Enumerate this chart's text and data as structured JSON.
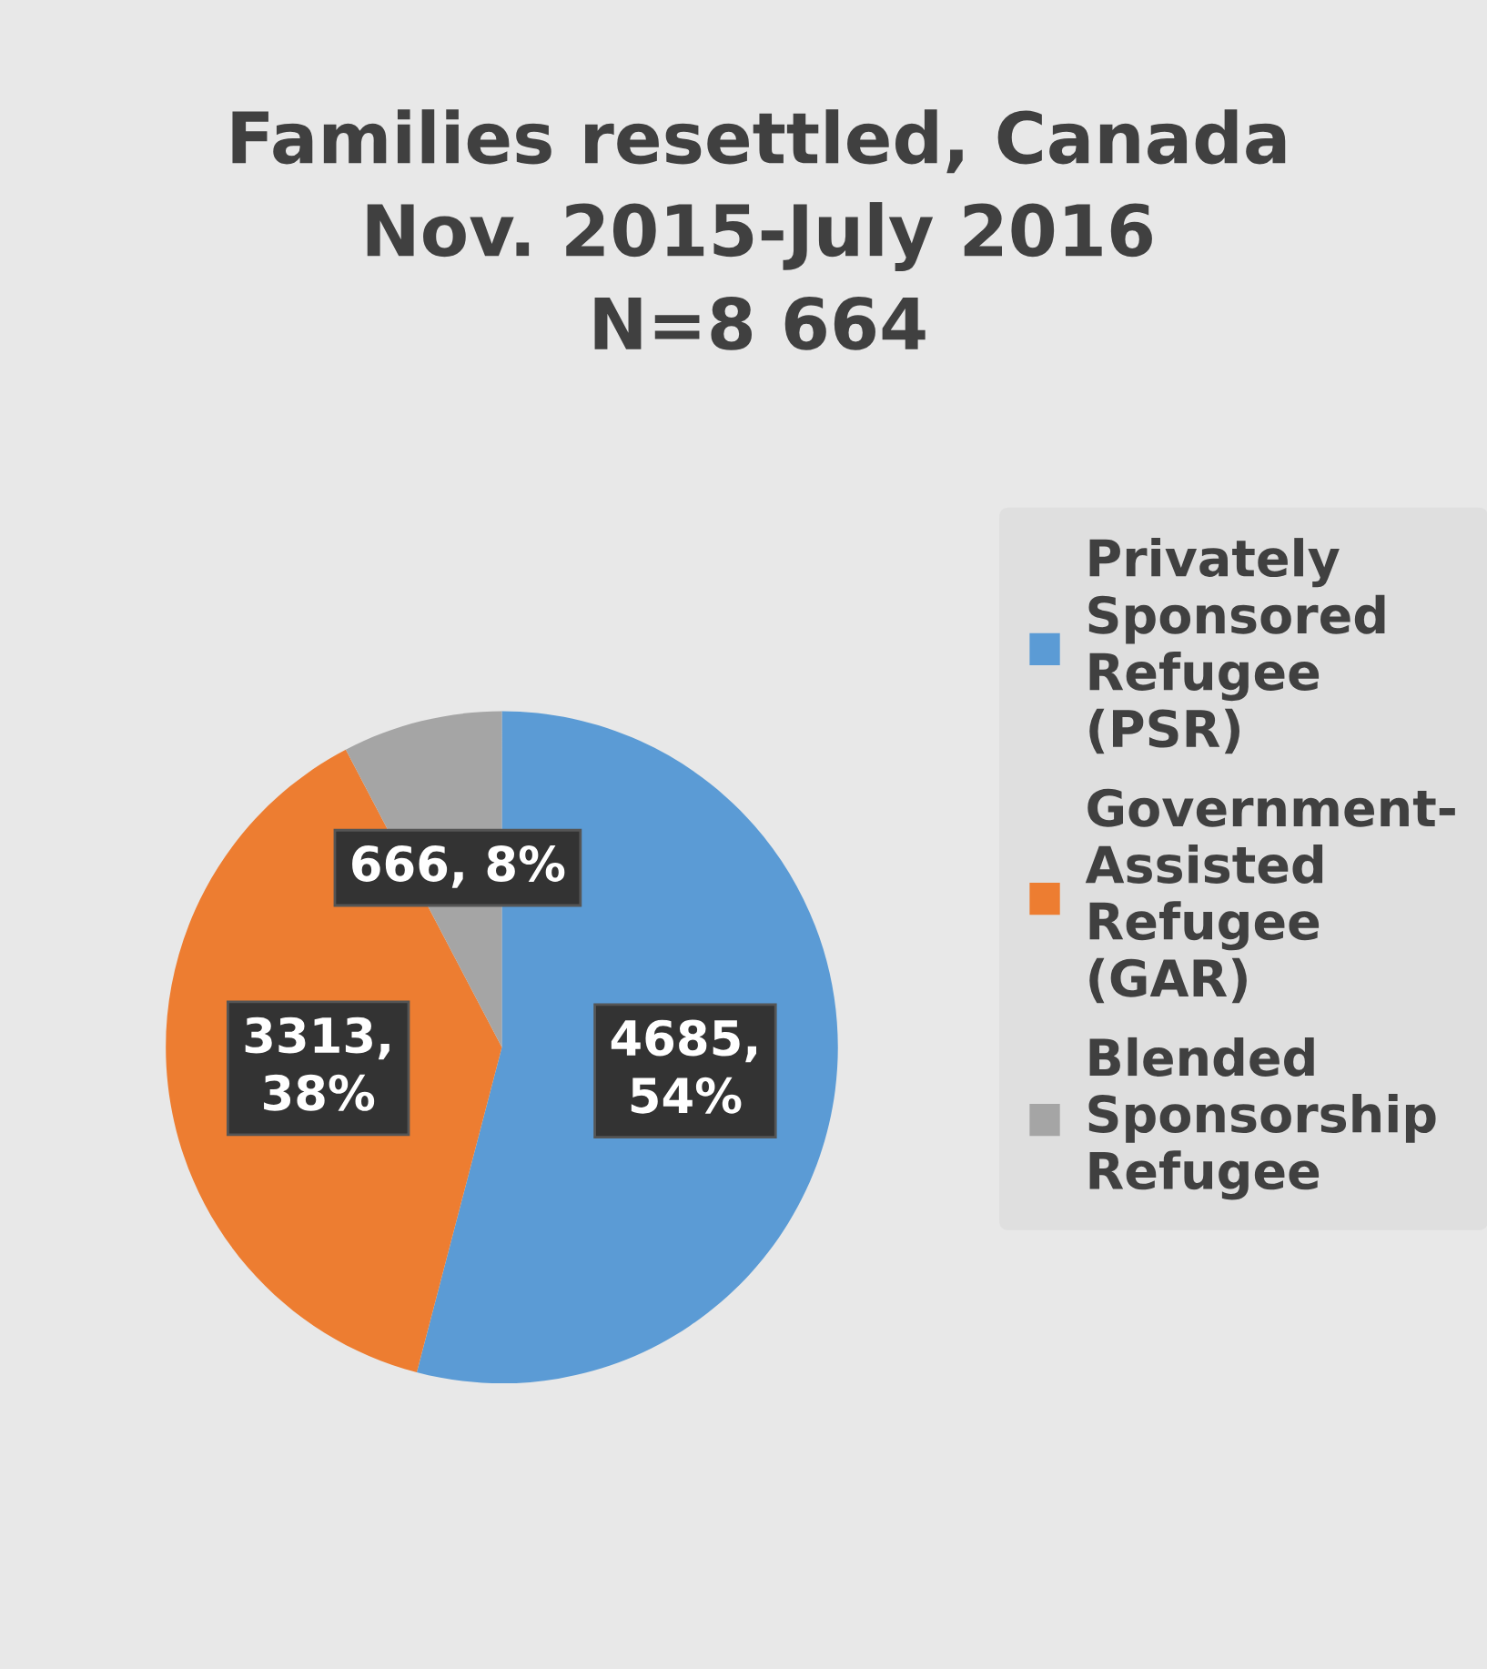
{
  "chart_data": {
    "type": "pie",
    "title": "Families resettled, Canada\nNov. 2015-July 2016\nN=8 664",
    "categories": [
      "Privately\nSponsored\nRefugee\n(PSR)",
      "Government-\nAssisted\nRefugee\n(GAR)",
      "Blended\nSponsorship\nRefugee"
    ],
    "values": [
      4685,
      3313,
      666
    ],
    "colors": [
      "#5b9bd5",
      "#ed7d31",
      "#a5a5a5"
    ],
    "value_labels": [
      "4685,\n54%",
      "3313,\n38%",
      "666, 8%"
    ],
    "legend": "right"
  }
}
